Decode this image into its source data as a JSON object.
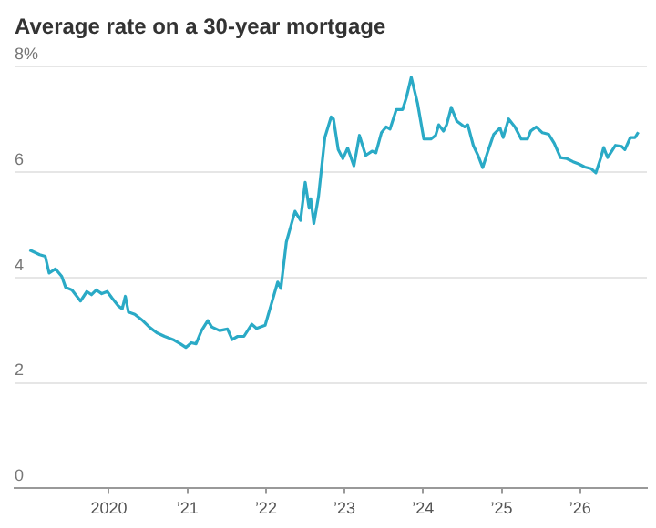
{
  "chart_data": {
    "type": "line",
    "title": "Average rate on a 30-year mortgage",
    "x": [
      2018.99,
      2019.12,
      2019.19,
      2019.24,
      2019.32,
      2019.4,
      2019.45,
      2019.53,
      2019.64,
      2019.72,
      2019.78,
      2019.84,
      2019.91,
      2019.98,
      2020.04,
      2020.12,
      2020.17,
      2020.21,
      2020.25,
      2020.33,
      2020.43,
      2020.52,
      2020.61,
      2020.71,
      2020.83,
      2020.91,
      2020.98,
      2021.05,
      2021.11,
      2021.18,
      2021.26,
      2021.31,
      2021.41,
      2021.51,
      2021.57,
      2021.64,
      2021.72,
      2021.82,
      2021.88,
      2021.99,
      2022.07,
      2022.15,
      2022.19,
      2022.26,
      2022.37,
      2022.44,
      2022.5,
      2022.55,
      2022.57,
      2022.61,
      2022.67,
      2022.75,
      2022.83,
      2022.86,
      2022.92,
      2022.98,
      2023.04,
      2023.12,
      2023.19,
      2023.27,
      2023.35,
      2023.4,
      2023.47,
      2023.53,
      2023.58,
      2023.66,
      2023.74,
      2023.79,
      2023.85,
      2023.93,
      2024.01,
      2024.1,
      2024.16,
      2024.2,
      2024.26,
      2024.3,
      2024.36,
      2024.43,
      2024.53,
      2024.57,
      2024.64,
      2024.7,
      2024.76,
      2024.82,
      2024.9,
      2024.98,
      2025.02,
      2025.09,
      2025.17,
      2025.25,
      2025.33,
      2025.37,
      2025.44,
      2025.52,
      2025.6,
      2025.67,
      2025.75,
      2025.83,
      2025.91,
      2025.98,
      2026.06,
      2026.14,
      2026.2,
      2026.26,
      2026.3,
      2026.35,
      2026.45,
      2026.53,
      2026.57,
      2026.64,
      2026.7,
      2026.74
    ],
    "series": [
      {
        "color": "#2aaac6",
        "values": [
          4.52,
          4.43,
          4.4,
          4.08,
          4.16,
          4.02,
          3.81,
          3.76,
          3.55,
          3.73,
          3.67,
          3.76,
          3.69,
          3.73,
          3.61,
          3.46,
          3.4,
          3.64,
          3.34,
          3.3,
          3.18,
          3.05,
          2.95,
          2.88,
          2.81,
          2.74,
          2.67,
          2.76,
          2.74,
          2.99,
          3.18,
          3.06,
          2.99,
          3.02,
          2.82,
          2.88,
          2.88,
          3.11,
          3.03,
          3.09,
          3.5,
          3.91,
          3.79,
          4.67,
          5.25,
          5.08,
          5.8,
          5.31,
          5.49,
          5.02,
          5.54,
          6.65,
          7.04,
          7.0,
          6.42,
          6.25,
          6.45,
          6.11,
          6.69,
          6.31,
          6.39,
          6.36,
          6.74,
          6.85,
          6.81,
          7.18,
          7.18,
          7.42,
          7.79,
          7.3,
          6.62,
          6.62,
          6.69,
          6.89,
          6.77,
          6.89,
          7.22,
          6.96,
          6.85,
          6.89,
          6.5,
          6.31,
          6.08,
          6.36,
          6.71,
          6.83,
          6.65,
          7.0,
          6.85,
          6.62,
          6.62,
          6.77,
          6.85,
          6.74,
          6.71,
          6.54,
          6.27,
          6.25,
          6.19,
          6.15,
          6.09,
          6.06,
          5.98,
          6.25,
          6.46,
          6.27,
          6.5,
          6.48,
          6.42,
          6.65,
          6.65,
          6.75
        ]
      }
    ],
    "xlim": [
      2018.8,
      2026.85
    ],
    "xticks": [
      2020,
      {
        "value": 2021,
        "label": "’21"
      },
      {
        "value": 2022,
        "label": "’22"
      },
      {
        "value": 2023,
        "label": "’23"
      },
      {
        "value": 2024,
        "label": "’24"
      },
      {
        "value": 2025,
        "label": "’25"
      },
      {
        "value": 2026,
        "label": "’26"
      }
    ],
    "ylim": [
      0,
      8
    ],
    "yticks": [
      0,
      2,
      4,
      6,
      {
        "value": 8,
        "label": "8%"
      }
    ],
    "grid": "y",
    "legend": false,
    "marker": "none",
    "line_style": "solid"
  }
}
